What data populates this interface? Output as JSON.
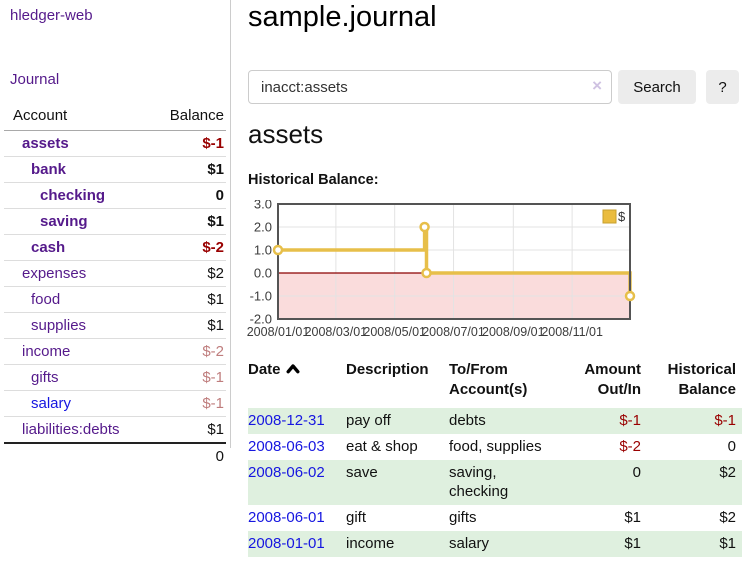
{
  "app": {
    "title": "hledger-web",
    "nav_journal_label": "Journal"
  },
  "sidebar": {
    "accounts_table": {
      "headers": {
        "account": "Account",
        "balance": "Balance"
      },
      "rows": [
        {
          "account": "assets",
          "balance": "$-1",
          "depth": 1,
          "bold": true,
          "negative": "strong",
          "link_blue": false
        },
        {
          "account": "bank",
          "balance": "$1",
          "depth": 2,
          "bold": true,
          "negative": null,
          "link_blue": false
        },
        {
          "account": "checking",
          "balance": "0",
          "depth": 3,
          "bold": true,
          "negative": null,
          "link_blue": false
        },
        {
          "account": "saving",
          "balance": "$1",
          "depth": 3,
          "bold": true,
          "negative": null,
          "link_blue": false
        },
        {
          "account": "cash",
          "balance": "$-2",
          "depth": 2,
          "bold": true,
          "negative": "strong",
          "link_blue": false
        },
        {
          "account": "expenses",
          "balance": "$2",
          "depth": 1,
          "bold": false,
          "negative": null,
          "link_blue": false
        },
        {
          "account": "food",
          "balance": "$1",
          "depth": 2,
          "bold": false,
          "negative": null,
          "link_blue": false
        },
        {
          "account": "supplies",
          "balance": "$1",
          "depth": 2,
          "bold": false,
          "negative": null,
          "link_blue": false
        },
        {
          "account": "income",
          "balance": "$-2",
          "depth": 1,
          "bold": false,
          "negative": "soft",
          "link_blue": false
        },
        {
          "account": "gifts",
          "balance": "$-1",
          "depth": 2,
          "bold": false,
          "negative": "soft",
          "link_blue": false
        },
        {
          "account": "salary",
          "balance": "$-1",
          "depth": 2,
          "bold": false,
          "negative": "soft",
          "link_blue": true
        },
        {
          "account": "liabilities:debts",
          "balance": "$1",
          "depth": 1,
          "bold": false,
          "negative": null,
          "link_blue": false
        }
      ],
      "total": "0"
    }
  },
  "header": {
    "title": "sample.journal"
  },
  "search": {
    "value": "inacct:assets",
    "clear_icon": "×",
    "button_label": "Search",
    "help_label": "?"
  },
  "account_page": {
    "heading": "assets",
    "chart_label": "Historical Balance:"
  },
  "chart_data": {
    "type": "line",
    "step": true,
    "title": "Historical Balance:",
    "series": [
      {
        "name": "$",
        "points": [
          [
            "2008-01-01",
            1.0
          ],
          [
            "2008-06-01",
            2.0
          ],
          [
            "2008-06-03",
            0.0
          ],
          [
            "2008-12-31",
            -1.0
          ]
        ]
      }
    ],
    "x_range": [
      "2008-01-01",
      "2008-12-31"
    ],
    "ylim": [
      -2.0,
      3.0
    ],
    "yticks": [
      3.0,
      2.0,
      1.0,
      0.0,
      -1.0,
      -2.0
    ],
    "xtick_dates": [
      "2008-01-01",
      "2008-03-01",
      "2008-05-01",
      "2008-07-01",
      "2008-09-01",
      "2008-11-01"
    ],
    "xtick_labels": [
      "2008/01/01",
      "2008/03/01",
      "2008/05/01",
      "2008/07/01",
      "2008/09/01",
      "2008/11/01"
    ],
    "grid": true,
    "legend_position": "top-right",
    "line_color": "#e7bf4a",
    "marker_fill": "#ffffff",
    "negative_region_color": "#fadcdc",
    "zero_line_color": "#8b0000",
    "grid_color": "#e3e3e3",
    "border_color": "#545454",
    "legend_swatch_color": "#eabc3f",
    "legend_swatch_border": "#c79f2d",
    "axis_text_color": "#3c3c3c"
  },
  "register_table": {
    "columns": [
      {
        "label": "Date",
        "sort": "ascending"
      },
      {
        "label": "Description"
      },
      {
        "label": "To/From\nAccount(s)"
      },
      {
        "label": "Amount\nOut/In",
        "align": "right"
      },
      {
        "label": "Historical\nBalance",
        "align": "right"
      }
    ],
    "rows": [
      {
        "date": "2008-12-31",
        "description": "pay off",
        "accounts": "debts",
        "amount": "$-1",
        "amount_negative": true,
        "balance": "$-1",
        "balance_negative": true
      },
      {
        "date": "2008-06-03",
        "description": "eat & shop",
        "accounts": "food, supplies",
        "amount": "$-2",
        "amount_negative": true,
        "balance": "0",
        "balance_negative": false
      },
      {
        "date": "2008-06-02",
        "description": "save",
        "accounts": "saving,\nchecking",
        "amount": "0",
        "amount_negative": false,
        "balance": "$2",
        "balance_negative": false
      },
      {
        "date": "2008-06-01",
        "description": "gift",
        "accounts": "gifts",
        "amount": "$1",
        "amount_negative": false,
        "balance": "$2",
        "balance_negative": false
      },
      {
        "date": "2008-01-01",
        "description": "income",
        "accounts": "salary",
        "amount": "$1",
        "amount_negative": false,
        "balance": "$1",
        "balance_negative": false
      }
    ]
  },
  "colors": {
    "link_purple": "#551a8b",
    "link_blue": "#1616e0",
    "negative_strong": "#990000",
    "negative_soft": "#bf7d7d",
    "row_stripe_green": "#dff0df",
    "chart_gold": "#e7bf4a"
  }
}
